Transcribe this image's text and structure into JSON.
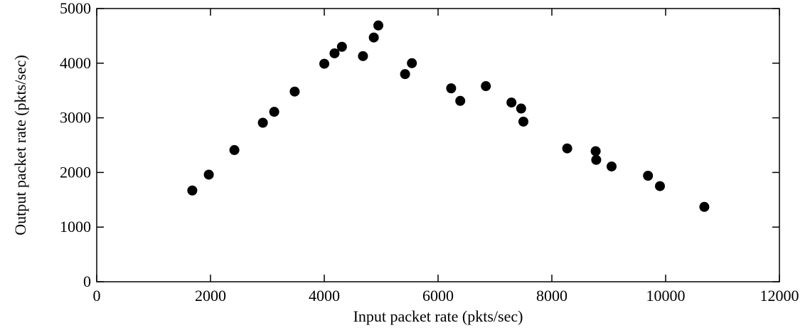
{
  "chart_data": {
    "type": "scatter",
    "title": "",
    "xlabel": "Input packet rate (pkts/sec)",
    "ylabel": "Output packet rate (pkts/sec)",
    "xlim": [
      0,
      12000
    ],
    "ylim": [
      0,
      5000
    ],
    "xticks": [
      0,
      2000,
      4000,
      6000,
      8000,
      10000,
      12000
    ],
    "yticks": [
      0,
      1000,
      2000,
      3000,
      4000,
      5000
    ],
    "grid": false,
    "legend": "none",
    "marker_color": "#000000",
    "marker": "filled-circle",
    "series": [
      {
        "points": [
          [
            1680,
            1670
          ],
          [
            1970,
            1960
          ],
          [
            2420,
            2410
          ],
          [
            2920,
            2910
          ],
          [
            3120,
            3110
          ],
          [
            3480,
            3480
          ],
          [
            4000,
            3990
          ],
          [
            4180,
            4180
          ],
          [
            4310,
            4300
          ],
          [
            4680,
            4130
          ],
          [
            4870,
            4470
          ],
          [
            4950,
            4690
          ],
          [
            5420,
            3800
          ],
          [
            5540,
            4000
          ],
          [
            6230,
            3540
          ],
          [
            6390,
            3310
          ],
          [
            6840,
            3580
          ],
          [
            7290,
            3280
          ],
          [
            7460,
            3170
          ],
          [
            7500,
            2930
          ],
          [
            8270,
            2440
          ],
          [
            8770,
            2390
          ],
          [
            8780,
            2230
          ],
          [
            9050,
            2110
          ],
          [
            9690,
            1940
          ],
          [
            9900,
            1750
          ],
          [
            10680,
            1370
          ]
        ]
      }
    ]
  }
}
